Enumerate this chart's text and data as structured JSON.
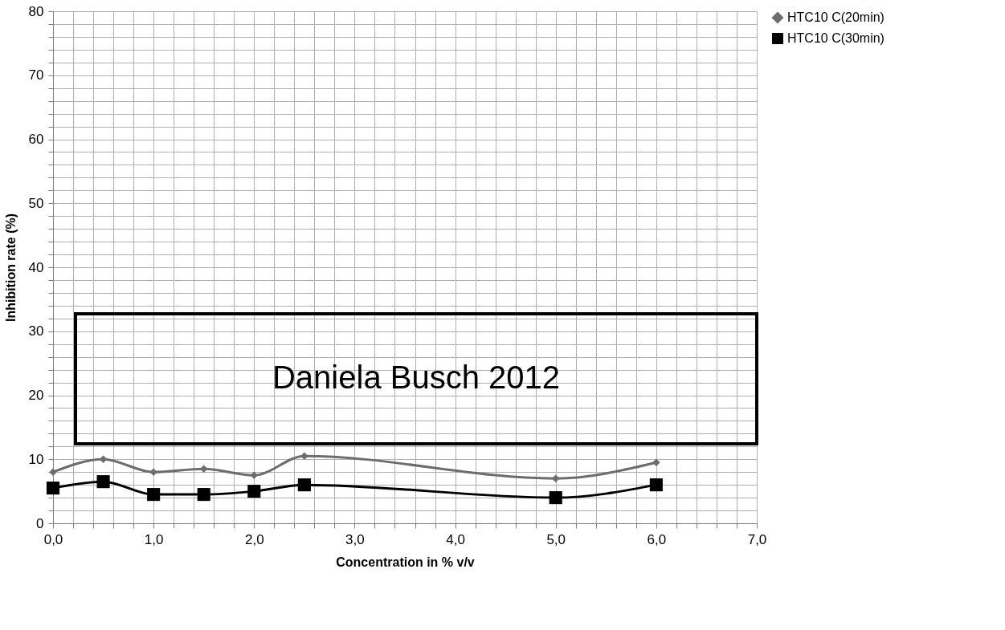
{
  "chart_data": {
    "type": "line",
    "xlabel": "Concentration in % v/v",
    "ylabel": "Inhibition rate (%)",
    "x": [
      0,
      0.5,
      1,
      1.5,
      2,
      2.5,
      5,
      6
    ],
    "series": [
      {
        "name": "HTC10 C(20min)",
        "color": "#6d6d6d",
        "marker": "diamond",
        "values": [
          8,
          10,
          8,
          8.5,
          7.5,
          10.5,
          7,
          9.5
        ]
      },
      {
        "name": "HTC10 C(30min)",
        "color": "#000000",
        "marker": "square",
        "values": [
          5.5,
          6.5,
          4.5,
          4.5,
          5,
          6,
          4,
          6
        ]
      }
    ],
    "xlim": [
      0,
      7
    ],
    "xticks": [
      {
        "value": 0,
        "label": "0,0"
      },
      {
        "value": 0.2,
        "label": null
      },
      {
        "value": 0.4,
        "label": null
      },
      {
        "value": 0.6,
        "label": null
      },
      {
        "value": 0.8,
        "label": null
      },
      {
        "value": 1,
        "label": "1,0"
      },
      {
        "value": 1.2,
        "label": null
      },
      {
        "value": 1.4,
        "label": null
      },
      {
        "value": 1.6,
        "label": null
      },
      {
        "value": 1.8,
        "label": null
      },
      {
        "value": 2,
        "label": "2,0"
      },
      {
        "value": 2.2,
        "label": null
      },
      {
        "value": 2.4,
        "label": null
      },
      {
        "value": 2.6,
        "label": null
      },
      {
        "value": 2.8,
        "label": null
      },
      {
        "value": 3,
        "label": "3,0"
      },
      {
        "value": 3.2,
        "label": null
      },
      {
        "value": 3.4,
        "label": null
      },
      {
        "value": 3.6,
        "label": null
      },
      {
        "value": 3.8,
        "label": null
      },
      {
        "value": 4,
        "label": "4,0"
      },
      {
        "value": 4.2,
        "label": null
      },
      {
        "value": 4.4,
        "label": null
      },
      {
        "value": 4.6,
        "label": null
      },
      {
        "value": 4.8,
        "label": null
      },
      {
        "value": 5,
        "label": "5,0"
      },
      {
        "value": 5.2,
        "label": null
      },
      {
        "value": 5.4,
        "label": null
      },
      {
        "value": 5.6,
        "label": null
      },
      {
        "value": 5.8,
        "label": null
      },
      {
        "value": 6,
        "label": "6,0"
      },
      {
        "value": 6.2,
        "label": null
      },
      {
        "value": 6.4,
        "label": null
      },
      {
        "value": 6.6,
        "label": null
      },
      {
        "value": 6.8,
        "label": null
      },
      {
        "value": 7,
        "label": "7,0"
      }
    ],
    "ylim": [
      0,
      80
    ],
    "yticks": [
      0,
      {
        "value": 2,
        "label": null
      },
      {
        "value": 4,
        "label": null
      },
      {
        "value": 6,
        "label": null
      },
      {
        "value": 8,
        "label": null
      },
      10,
      {
        "value": 12,
        "label": null
      },
      {
        "value": 14,
        "label": null
      },
      {
        "value": 16,
        "label": null
      },
      {
        "value": 18,
        "label": null
      },
      20,
      {
        "value": 22,
        "label": null
      },
      {
        "value": 24,
        "label": null
      },
      {
        "value": 26,
        "label": null
      },
      {
        "value": 28,
        "label": null
      },
      30,
      {
        "value": 32,
        "label": null
      },
      {
        "value": 34,
        "label": null
      },
      {
        "value": 36,
        "label": null
      },
      {
        "value": 38,
        "label": null
      },
      40,
      {
        "value": 42,
        "label": null
      },
      {
        "value": 44,
        "label": null
      },
      {
        "value": 46,
        "label": null
      },
      {
        "value": 48,
        "label": null
      },
      50,
      {
        "value": 52,
        "label": null
      },
      {
        "value": 54,
        "label": null
      },
      {
        "value": 56,
        "label": null
      },
      {
        "value": 58,
        "label": null
      },
      60,
      {
        "value": 62,
        "label": null
      },
      {
        "value": 64,
        "label": null
      },
      {
        "value": 66,
        "label": null
      },
      {
        "value": 68,
        "label": null
      },
      70,
      {
        "value": 72,
        "label": null
      },
      {
        "value": 74,
        "label": null
      },
      {
        "value": 76,
        "label": null
      },
      {
        "value": 78,
        "label": null
      },
      80
    ],
    "grid": true,
    "legend": "right",
    "line_style": "solid",
    "annotations": [
      "Daniela Busch 2012"
    ]
  }
}
